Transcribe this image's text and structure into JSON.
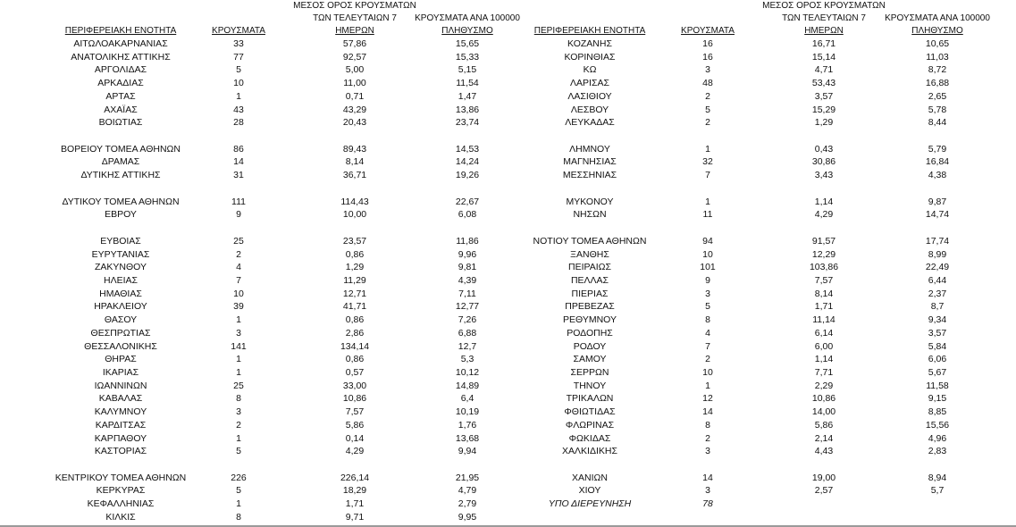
{
  "tables": [
    {
      "headers": [
        [
          "ΠΕΡΙΦΕΡΕΙΑΚΗ ΕΝΟΤΗΤΑ"
        ],
        [
          "ΚΡΟΥΣΜΑΤΑ"
        ],
        [
          "ΜΕΣΟΣ ΟΡΟΣ ΚΡΟΥΣΜΑΤΩΝ",
          "ΤΩΝ ΤΕΛΕΥΤΑΙΩΝ 7",
          "ΗΜΕΡΩΝ"
        ],
        [
          "ΚΡΟΥΣΜΑΤΑ ΑΝΑ 100000",
          "ΠΛΗΘΥΣΜΟ"
        ]
      ],
      "groups": [
        [
          [
            "ΑΙΤΩΛΟΑΚΑΡΝΑΝΙΑΣ",
            "33",
            "57,86",
            "15,65"
          ],
          [
            "ΑΝΑΤΟΛΙΚΗΣ ΑΤΤΙΚΗΣ",
            "77",
            "92,57",
            "15,33"
          ],
          [
            "ΑΡΓΟΛΙΔΑΣ",
            "5",
            "5,00",
            "5,15"
          ],
          [
            "ΑΡΚΑΔΙΑΣ",
            "10",
            "11,00",
            "11,54"
          ],
          [
            "ΑΡΤΑΣ",
            "1",
            "0,71",
            "1,47"
          ],
          [
            "ΑΧΑΪΑΣ",
            "43",
            "43,29",
            "13,86"
          ],
          [
            "ΒΟΙΩΤΙΑΣ",
            "28",
            "20,43",
            "23,74"
          ]
        ],
        [
          [
            "ΒΟΡΕΙΟΥ ΤΟΜΕΑ ΑΘΗΝΩΝ",
            "86",
            "89,43",
            "14,53"
          ],
          [
            "ΔΡΑΜΑΣ",
            "14",
            "8,14",
            "14,24"
          ],
          [
            "ΔΥΤΙΚΗΣ ΑΤΤΙΚΗΣ",
            "31",
            "36,71",
            "19,26"
          ]
        ],
        [
          [
            "ΔΥΤΙΚΟΥ ΤΟΜΕΑ ΑΘΗΝΩΝ",
            "111",
            "114,43",
            "22,67"
          ],
          [
            "ΕΒΡΟΥ",
            "9",
            "10,00",
            "6,08"
          ]
        ],
        [
          [
            "ΕΥΒΟΙΑΣ",
            "25",
            "23,57",
            "11,86"
          ],
          [
            "ΕΥΡΥΤΑΝΙΑΣ",
            "2",
            "0,86",
            "9,96"
          ],
          [
            "ΖΑΚΥΝΘΟΥ",
            "4",
            "1,29",
            "9,81"
          ],
          [
            "ΗΛΕΙΑΣ",
            "7",
            "11,29",
            "4,39"
          ],
          [
            "ΗΜΑΘΙΑΣ",
            "10",
            "12,71",
            "7,11"
          ],
          [
            "ΗΡΑΚΛΕΙΟΥ",
            "39",
            "41,71",
            "12,77"
          ],
          [
            "ΘΑΣΟΥ",
            "1",
            "0,86",
            "7,26"
          ],
          [
            "ΘΕΣΠΡΩΤΙΑΣ",
            "3",
            "2,86",
            "6,88"
          ],
          [
            "ΘΕΣΣΑΛΟΝΙΚΗΣ",
            "141",
            "134,14",
            "12,7"
          ],
          [
            "ΘΗΡΑΣ",
            "1",
            "0,86",
            "5,3"
          ],
          [
            "ΙΚΑΡΙΑΣ",
            "1",
            "0,57",
            "10,12"
          ],
          [
            "ΙΩΑΝΝΙΝΩΝ",
            "25",
            "33,00",
            "14,89"
          ],
          [
            "ΚΑΒΑΛΑΣ",
            "8",
            "10,86",
            "6,4"
          ],
          [
            "ΚΑΛΥΜΝΟΥ",
            "3",
            "7,57",
            "10,19"
          ],
          [
            "ΚΑΡΔΙΤΣΑΣ",
            "2",
            "5,86",
            "1,76"
          ],
          [
            "ΚΑΡΠΑΘΟΥ",
            "1",
            "0,14",
            "13,68"
          ],
          [
            "ΚΑΣΤΟΡΙΑΣ",
            "5",
            "4,29",
            "9,94"
          ]
        ],
        [
          [
            "ΚΕΝΤΡΙΚΟΥ ΤΟΜΕΑ ΑΘΗΝΩΝ",
            "226",
            "226,14",
            "21,95"
          ],
          [
            "ΚΕΡΚΥΡΑΣ",
            "5",
            "18,29",
            "4,79"
          ],
          [
            "ΚΕΦΑΛΛΗΝΙΑΣ",
            "1",
            "1,71",
            "2,79"
          ],
          [
            "ΚΙΛΚΙΣ",
            "8",
            "9,71",
            "9,95"
          ]
        ]
      ]
    },
    {
      "headers": [
        [
          "ΠΕΡΙΦΕΡΕΙΑΚΗ ΕΝΟΤΗΤΑ"
        ],
        [
          "ΚΡΟΥΣΜΑΤΑ"
        ],
        [
          "ΜΕΣΟΣ ΟΡΟΣ ΚΡΟΥΣΜΑΤΩΝ",
          "ΤΩΝ ΤΕΛΕΥΤΑΙΩΝ 7",
          "ΗΜΕΡΩΝ"
        ],
        [
          "ΚΡΟΥΣΜΑΤΑ ΑΝΑ 100000",
          "ΠΛΗΘΥΣΜΟ"
        ]
      ],
      "groups": [
        [
          [
            "ΚΟΖΑΝΗΣ",
            "16",
            "16,71",
            "10,65"
          ],
          [
            "ΚΟΡΙΝΘΙΑΣ",
            "16",
            "15,14",
            "11,03"
          ],
          [
            "ΚΩ",
            "3",
            "4,71",
            "8,72"
          ],
          [
            "ΛΑΡΙΣΑΣ",
            "48",
            "53,43",
            "16,88"
          ],
          [
            "ΛΑΣΙΘΙΟΥ",
            "2",
            "3,57",
            "2,65"
          ],
          [
            "ΛΕΣΒΟΥ",
            "5",
            "15,29",
            "5,78"
          ],
          [
            "ΛΕΥΚΑΔΑΣ",
            "2",
            "1,29",
            "8,44"
          ]
        ],
        [
          [
            "ΛΗΜΝΟΥ",
            "1",
            "0,43",
            "5,79"
          ],
          [
            "ΜΑΓΝΗΣΙΑΣ",
            "32",
            "30,86",
            "16,84"
          ],
          [
            "ΜΕΣΣΗΝΙΑΣ",
            "7",
            "3,43",
            "4,38"
          ]
        ],
        [
          [
            "ΜΥΚΟΝΟΥ",
            "1",
            "1,14",
            "9,87"
          ],
          [
            "ΝΗΣΩΝ",
            "11",
            "4,29",
            "14,74"
          ]
        ],
        [
          [
            "ΝΟΤΙΟΥ ΤΟΜΕΑ ΑΘΗΝΩΝ",
            "94",
            "91,57",
            "17,74"
          ],
          [
            "ΞΑΝΘΗΣ",
            "10",
            "12,29",
            "8,99"
          ],
          [
            "ΠΕΙΡΑΙΩΣ",
            "101",
            "103,86",
            "22,49"
          ],
          [
            "ΠΕΛΛΑΣ",
            "9",
            "7,57",
            "6,44"
          ],
          [
            "ΠΙΕΡΙΑΣ",
            "3",
            "8,14",
            "2,37"
          ],
          [
            "ΠΡΕΒΕΖΑΣ",
            "5",
            "1,71",
            "8,7"
          ],
          [
            "ΡΕΘΥΜΝΟΥ",
            "8",
            "11,14",
            "9,34"
          ],
          [
            "ΡΟΔΟΠΗΣ",
            "4",
            "6,14",
            "3,57"
          ],
          [
            "ΡΟΔΟΥ",
            "7",
            "6,00",
            "5,84"
          ],
          [
            "ΣΑΜΟΥ",
            "2",
            "1,14",
            "6,06"
          ],
          [
            "ΣΕΡΡΩΝ",
            "10",
            "7,71",
            "5,67"
          ],
          [
            "ΤΗΝΟΥ",
            "1",
            "2,29",
            "11,58"
          ],
          [
            "ΤΡΙΚΑΛΩΝ",
            "12",
            "10,86",
            "9,15"
          ],
          [
            "ΦΘΙΩΤΙΔΑΣ",
            "14",
            "14,00",
            "8,85"
          ],
          [
            "ΦΛΩΡΙΝΑΣ",
            "8",
            "5,86",
            "15,56"
          ],
          [
            "ΦΩΚΙΔΑΣ",
            "2",
            "2,14",
            "4,96"
          ],
          [
            "ΧΑΛΚΙΔΙΚΗΣ",
            "3",
            "4,43",
            "2,83"
          ]
        ],
        [
          [
            "ΧΑΝΙΩΝ",
            "14",
            "19,00",
            "8,94"
          ],
          [
            "ΧΙΟΥ",
            "3",
            "2,57",
            "5,7"
          ]
        ]
      ],
      "pending_row": [
        "ΥΠΟ ΔΙΕΡΕΥΝΗΣΗ",
        "78"
      ]
    }
  ]
}
